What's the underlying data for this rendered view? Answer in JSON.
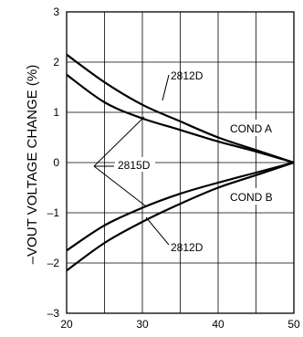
{
  "chart_data": {
    "type": "line",
    "title": "",
    "xlabel": "",
    "ylabel": "–VOUT VOLTAGE CHANGE (%)",
    "xlim": [
      20,
      50
    ],
    "ylim": [
      -3,
      3
    ],
    "x_ticks": [
      "20",
      "30",
      "40",
      "50"
    ],
    "y_ticks": [
      "3",
      "2",
      "1",
      "0",
      "–1",
      "–2",
      "–3"
    ],
    "grid": true,
    "series": [
      {
        "name": "2812D",
        "group": "COND A",
        "x": [
          20,
          25,
          30,
          35,
          40,
          45,
          50
        ],
        "y": [
          2.15,
          1.6,
          1.15,
          0.82,
          0.5,
          0.25,
          0.0
        ]
      },
      {
        "name": "2815D",
        "group": "COND A",
        "x": [
          20,
          25,
          30,
          35,
          40,
          45,
          50
        ],
        "y": [
          1.75,
          1.2,
          0.88,
          0.65,
          0.42,
          0.22,
          0.0
        ]
      },
      {
        "name": "2815D",
        "group": "COND B",
        "x": [
          20,
          25,
          30,
          35,
          40,
          45,
          50
        ],
        "y": [
          -1.75,
          -1.25,
          -0.9,
          -0.62,
          -0.4,
          -0.2,
          0.0
        ]
      },
      {
        "name": "2812D",
        "group": "COND B",
        "x": [
          20,
          25,
          30,
          35,
          40,
          45,
          50
        ],
        "y": [
          -2.15,
          -1.6,
          -1.18,
          -0.82,
          -0.5,
          -0.25,
          0.0
        ]
      }
    ],
    "annotations": {
      "label_2812d_top": "2812D",
      "label_2815d": "2815D",
      "label_2812d_bottom": "2812D",
      "cond_a": "COND A",
      "cond_b": "COND B"
    }
  }
}
